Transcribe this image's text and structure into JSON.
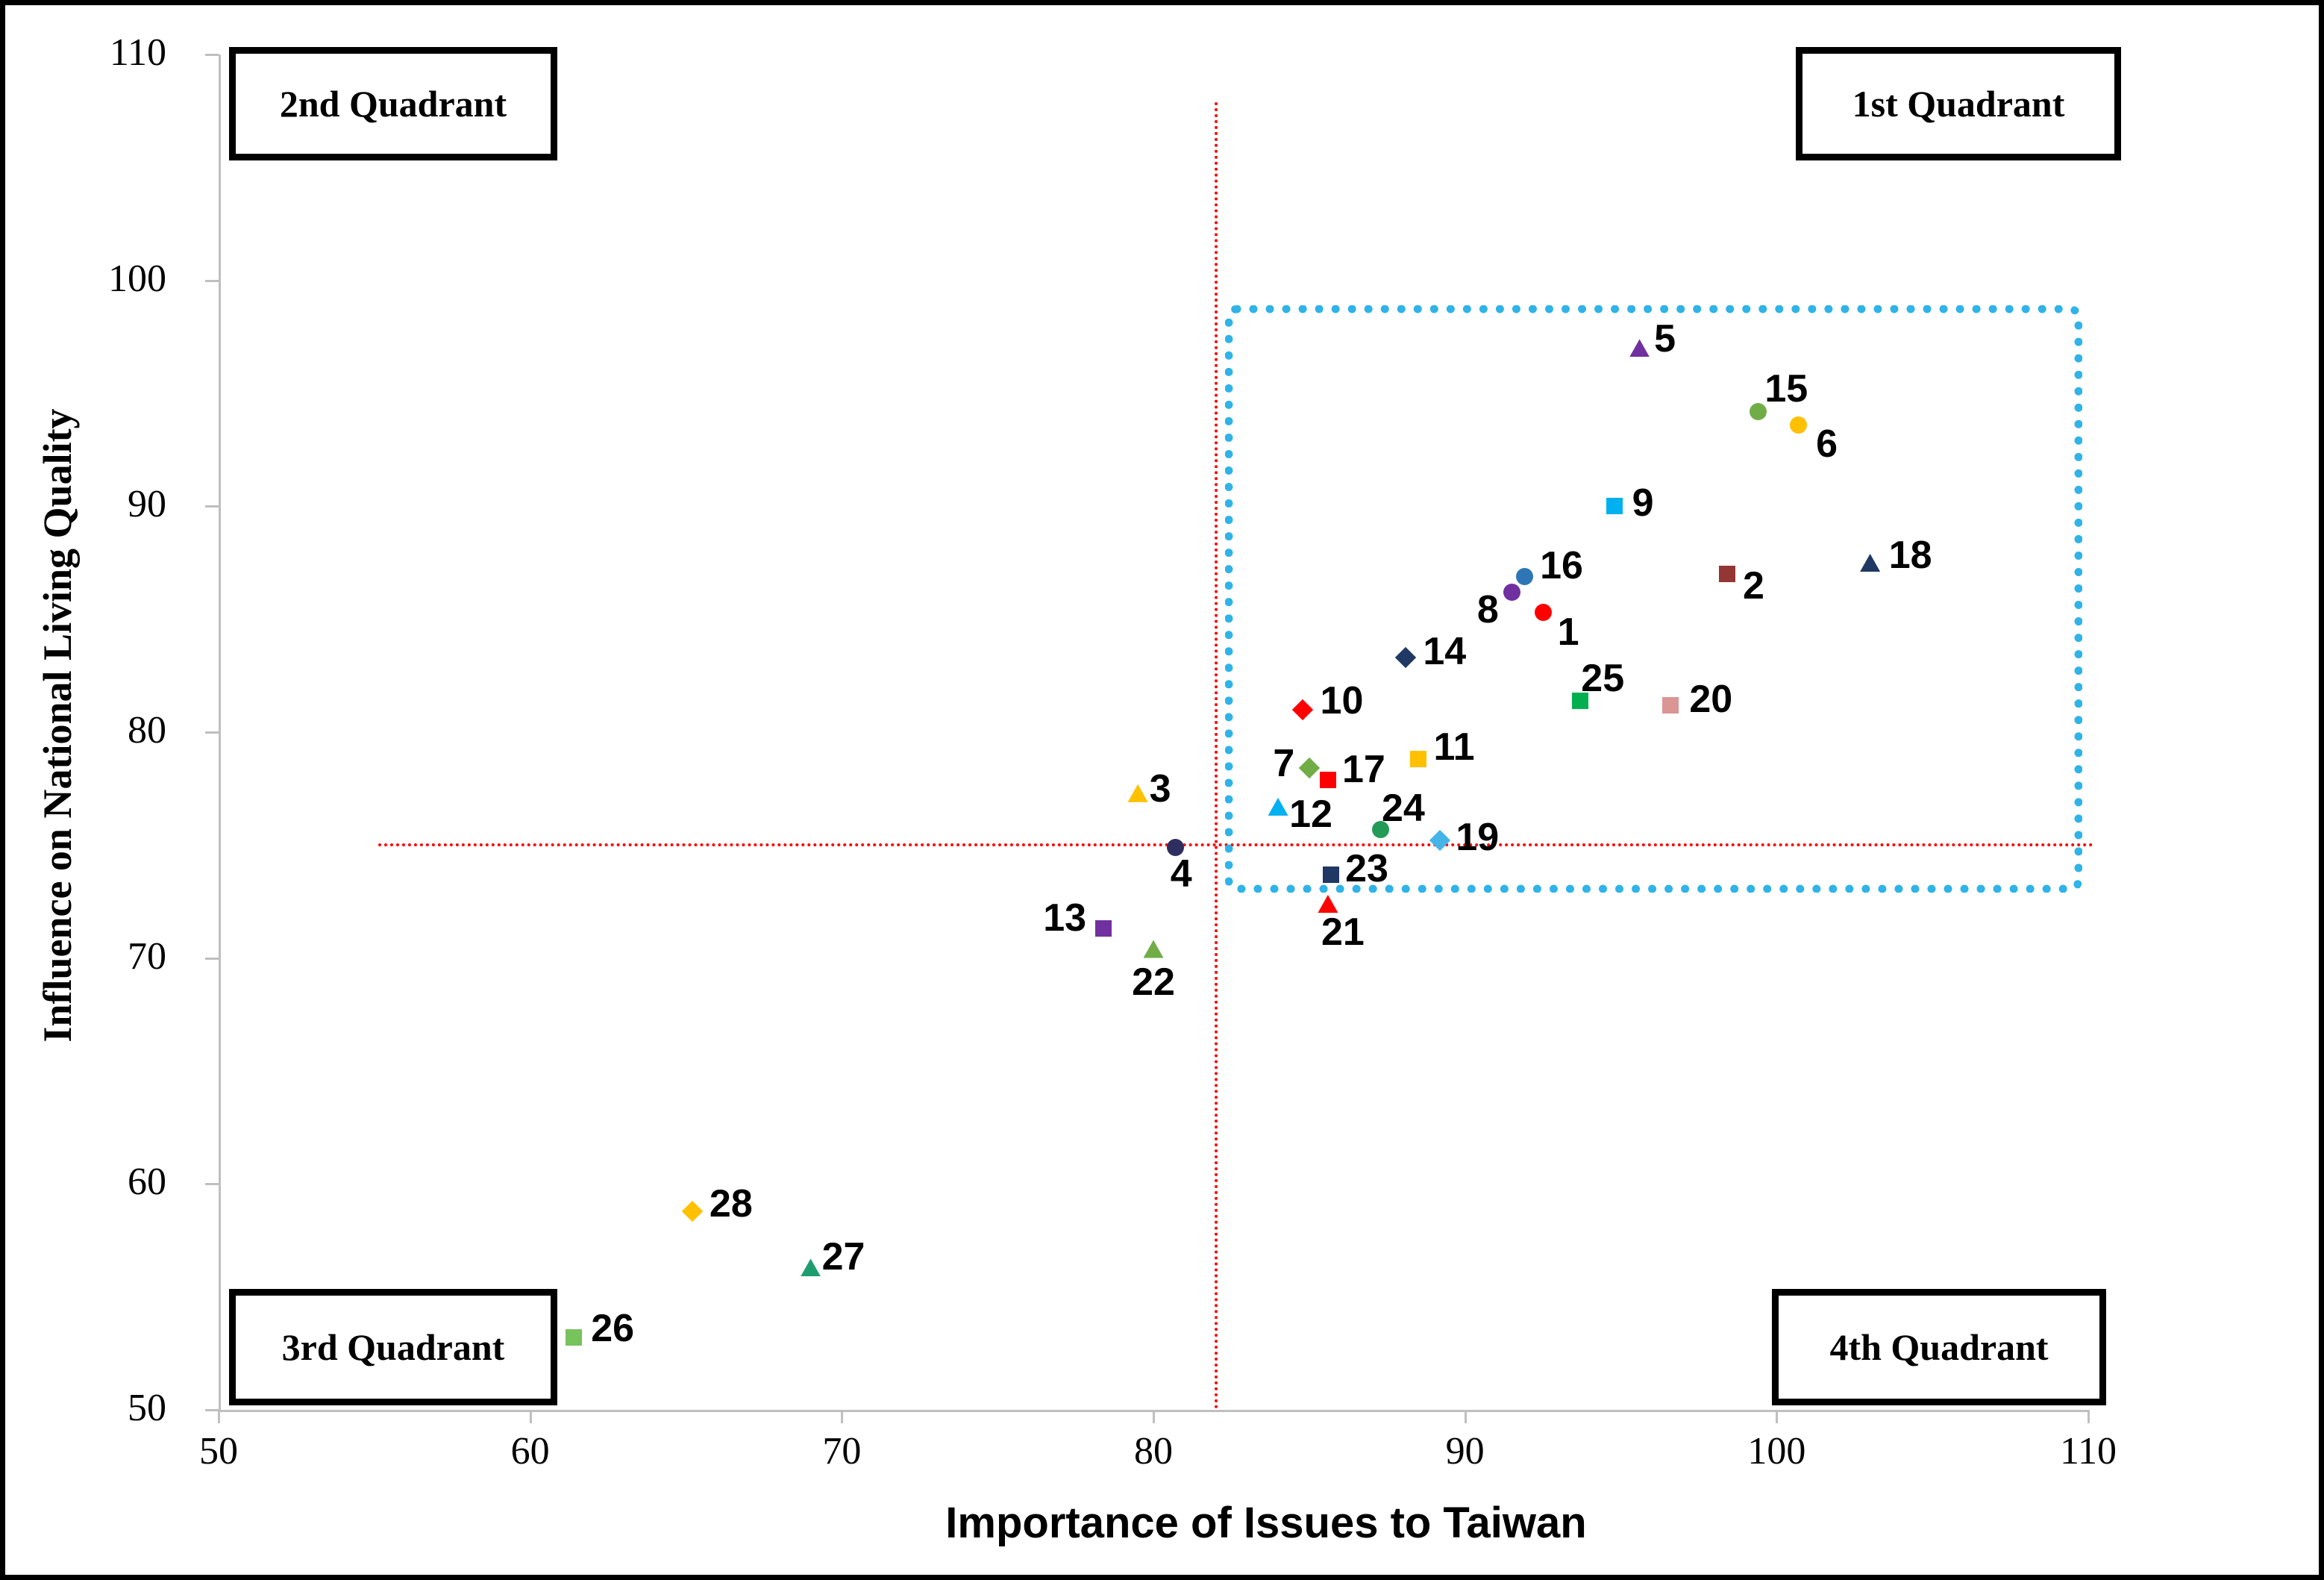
{
  "figure": {
    "quadrant_labels": {
      "q1": "1st Quadrant",
      "q2": "2nd Quadrant",
      "q3": "3rd Quadrant",
      "q4": "4th Quadrant"
    }
  },
  "chart_data": {
    "type": "scatter",
    "title": "",
    "xlabel": "Importance of Issues to Taiwan",
    "ylabel": "Influence on National Living Quality",
    "xlim": [
      50,
      110
    ],
    "ylim": [
      50,
      110
    ],
    "x_ticks": [
      50,
      60,
      70,
      80,
      90,
      100,
      110
    ],
    "y_ticks": [
      50,
      60,
      70,
      80,
      90,
      100,
      110
    ],
    "grid": false,
    "legend": "none",
    "reference_lines": {
      "vertical_x": 82,
      "horizontal_y": 75,
      "style": "dotted",
      "color": "#FF0000"
    },
    "highlight_box": {
      "x_min": 82.3,
      "x_max": 109.8,
      "y_min": 72.9,
      "y_max": 98.9,
      "style": "dotted",
      "color": "#2FB3E8"
    },
    "points": [
      {
        "label": "1",
        "x": 92.5,
        "y": 85.3,
        "shape": "circle",
        "color": "#FF0000",
        "offset": [
          34,
          26
        ]
      },
      {
        "label": "2",
        "x": 98.4,
        "y": 87.0,
        "shape": "square",
        "color": "#943634",
        "offset": [
          36,
          16
        ]
      },
      {
        "label": "3",
        "x": 79.5,
        "y": 77.3,
        "shape": "triangle",
        "color": "#FFC000",
        "offset": [
          30,
          -6
        ]
      },
      {
        "label": "4",
        "x": 80.7,
        "y": 74.9,
        "shape": "circle",
        "color": "#2E2E60",
        "offset": [
          8,
          36
        ]
      },
      {
        "label": "5",
        "x": 95.6,
        "y": 97.0,
        "shape": "triangle",
        "color": "#7030A0",
        "offset": [
          34,
          -12
        ]
      },
      {
        "label": "6",
        "x": 100.7,
        "y": 93.6,
        "shape": "circle",
        "color": "#FFC000",
        "offset": [
          38,
          26
        ]
      },
      {
        "label": "7",
        "x": 85.0,
        "y": 78.4,
        "shape": "diamond",
        "color": "#70AD47",
        "offset": [
          -34,
          -6
        ]
      },
      {
        "label": "8",
        "x": 91.5,
        "y": 86.2,
        "shape": "circle",
        "color": "#7030A0",
        "offset": [
          -32,
          24
        ]
      },
      {
        "label": "9",
        "x": 94.8,
        "y": 90.0,
        "shape": "square",
        "color": "#00B0F0",
        "offset": [
          38,
          -4
        ]
      },
      {
        "label": "10",
        "x": 84.8,
        "y": 81.0,
        "shape": "diamond",
        "color": "#FF0000",
        "offset": [
          52,
          -12
        ]
      },
      {
        "label": "11",
        "x": 88.5,
        "y": 78.8,
        "shape": "square",
        "color": "#FFC000",
        "offset": [
          48,
          -16
        ]
      },
      {
        "label": "12",
        "x": 84.0,
        "y": 76.7,
        "shape": "triangle",
        "color": "#00B0F0",
        "offset": [
          44,
          10
        ]
      },
      {
        "label": "13",
        "x": 78.4,
        "y": 71.3,
        "shape": "square",
        "color": "#7030A0",
        "offset": [
          -52,
          -14
        ]
      },
      {
        "label": "14",
        "x": 88.1,
        "y": 83.3,
        "shape": "diamond",
        "color": "#1F3864",
        "offset": [
          52,
          -8
        ]
      },
      {
        "label": "15",
        "x": 99.4,
        "y": 94.2,
        "shape": "circle",
        "color": "#70AD47",
        "offset": [
          38,
          -30
        ]
      },
      {
        "label": "16",
        "x": 91.9,
        "y": 86.9,
        "shape": "circle",
        "color": "#2E75B6",
        "offset": [
          50,
          -14
        ]
      },
      {
        "label": "17",
        "x": 85.6,
        "y": 77.9,
        "shape": "square",
        "color": "#FF0000",
        "offset": [
          48,
          -14
        ]
      },
      {
        "label": "18",
        "x": 103.0,
        "y": 87.5,
        "shape": "triangle",
        "color": "#1F3864",
        "offset": [
          54,
          -10
        ]
      },
      {
        "label": "19",
        "x": 89.2,
        "y": 75.2,
        "shape": "diamond",
        "color": "#45B5E8",
        "offset": [
          50,
          -4
        ]
      },
      {
        "label": "20",
        "x": 96.6,
        "y": 81.2,
        "shape": "square",
        "color": "#D99694",
        "offset": [
          54,
          -8
        ]
      },
      {
        "label": "21",
        "x": 85.6,
        "y": 72.4,
        "shape": "triangle",
        "color": "#FF0000",
        "offset": [
          20,
          38
        ]
      },
      {
        "label": "22",
        "x": 80.0,
        "y": 70.4,
        "shape": "triangle",
        "color": "#70AD47",
        "offset": [
          0,
          44
        ]
      },
      {
        "label": "23",
        "x": 85.7,
        "y": 73.7,
        "shape": "square",
        "color": "#1F3864",
        "offset": [
          48,
          -8
        ]
      },
      {
        "label": "24",
        "x": 87.3,
        "y": 75.7,
        "shape": "circle",
        "color": "#239B56",
        "offset": [
          30,
          -28
        ]
      },
      {
        "label": "25",
        "x": 93.7,
        "y": 81.4,
        "shape": "square",
        "color": "#00B050",
        "offset": [
          30,
          -30
        ]
      },
      {
        "label": "26",
        "x": 61.4,
        "y": 53.2,
        "shape": "square",
        "color": "#77C35C",
        "offset": [
          52,
          -12
        ]
      },
      {
        "label": "27",
        "x": 69.0,
        "y": 56.3,
        "shape": "triangle",
        "color": "#1E9E6E",
        "offset": [
          44,
          -14
        ]
      },
      {
        "label": "28",
        "x": 65.2,
        "y": 58.8,
        "shape": "diamond",
        "color": "#FFC000",
        "offset": [
          52,
          -10
        ]
      }
    ]
  }
}
